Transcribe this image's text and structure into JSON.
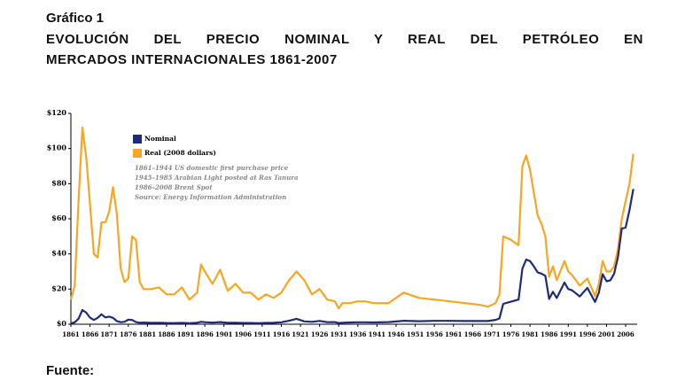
{
  "header": {
    "label": "Gráfico 1",
    "title_lines": [
      "EVOLUCIÓN DEL PRECIO NOMINAL Y REAL DEL PETRÓLEO EN",
      "MERCADOS INTERNACIONALES 1861-2007"
    ]
  },
  "chart_data": {
    "type": "line",
    "x": [
      1861,
      1862,
      1863,
      1864,
      1865,
      1866,
      1867,
      1868,
      1869,
      1870,
      1871,
      1872,
      1873,
      1874,
      1875,
      1876,
      1877,
      1878,
      1879,
      1880,
      1882,
      1884,
      1886,
      1888,
      1890,
      1892,
      1894,
      1895,
      1896,
      1898,
      1900,
      1902,
      1904,
      1906,
      1908,
      1910,
      1912,
      1914,
      1916,
      1918,
      1920,
      1922,
      1924,
      1926,
      1928,
      1930,
      1931,
      1932,
      1934,
      1936,
      1938,
      1940,
      1944,
      1948,
      1952,
      1956,
      1960,
      1964,
      1968,
      1970,
      1972,
      1973,
      1974,
      1976,
      1978,
      1979,
      1980,
      1981,
      1982,
      1983,
      1984,
      1985,
      1986,
      1987,
      1988,
      1990,
      1991,
      1992,
      1994,
      1996,
      1998,
      1999,
      2000,
      2001,
      2002,
      2003,
      2004,
      2005,
      2006,
      2007,
      2008
    ],
    "series": [
      {
        "name": "Real (2008 dollars)",
        "color": "#f5a623",
        "values": [
          14,
          22,
          70,
          112,
          95,
          68,
          40,
          38,
          58,
          58,
          64,
          78,
          63,
          32,
          24,
          26,
          50,
          48,
          24,
          20,
          20,
          21,
          17,
          17,
          21,
          14,
          18,
          34,
          30,
          23,
          31,
          19,
          23,
          18,
          18,
          14,
          17,
          15,
          18,
          25,
          30,
          25,
          17,
          20,
          14,
          13,
          9,
          12,
          12,
          13,
          13,
          12,
          12,
          18,
          15,
          14,
          13,
          12,
          11,
          10,
          12,
          17,
          50,
          48,
          45,
          90,
          96,
          88,
          75,
          62,
          57,
          50,
          27,
          33,
          25,
          36,
          30,
          28,
          22,
          26,
          16,
          23,
          36,
          30,
          30,
          33,
          43,
          60,
          70,
          80,
          97
        ]
      },
      {
        "name": "Nominal",
        "color": "#1f2a7a",
        "values": [
          0.5,
          1.05,
          3.15,
          8.06,
          6.59,
          3.74,
          2.41,
          3.63,
          5.64,
          3.86,
          4.34,
          3.64,
          1.83,
          1.17,
          1.35,
          2.56,
          2.42,
          1.19,
          0.86,
          0.95,
          0.78,
          0.84,
          0.71,
          0.65,
          0.77,
          0.56,
          0.84,
          1.36,
          1.18,
          0.91,
          1.19,
          0.8,
          0.86,
          0.73,
          0.72,
          0.61,
          0.74,
          0.81,
          1.1,
          1.98,
          3.07,
          1.61,
          1.34,
          1.88,
          1.17,
          1.19,
          0.65,
          0.87,
          1.0,
          1.09,
          1.13,
          1.02,
          1.21,
          1.99,
          1.71,
          1.93,
          1.9,
          1.8,
          1.8,
          1.8,
          2.48,
          3.29,
          11.58,
          12.8,
          14.02,
          31.61,
          36.83,
          35.93,
          32.97,
          29.55,
          28.78,
          27.56,
          14.43,
          18.44,
          14.92,
          23.73,
          20.0,
          19.32,
          15.82,
          20.67,
          12.72,
          17.97,
          28.5,
          24.44,
          25.02,
          28.83,
          38.27,
          54.52,
          55,
          65,
          77
        ]
      }
    ],
    "xlim": [
      1861,
      2009
    ],
    "xticks": [
      1861,
      1866,
      1871,
      1876,
      1881,
      1886,
      1891,
      1896,
      1901,
      1906,
      1911,
      1916,
      1921,
      1926,
      1931,
      1936,
      1941,
      1946,
      1951,
      1956,
      1961,
      1966,
      1971,
      1976,
      1981,
      1986,
      1991,
      1996,
      2001,
      2006
    ],
    "ylim": [
      0,
      120
    ],
    "yticks": [
      {
        "value": 0,
        "label": "$0"
      },
      {
        "value": 20,
        "label": "$20"
      },
      {
        "value": 40,
        "label": "$40"
      },
      {
        "value": 60,
        "label": "$60"
      },
      {
        "value": 80,
        "label": "$80"
      },
      {
        "value": 100,
        "label": "$100"
      },
      {
        "value": 120,
        "label": "$120"
      }
    ],
    "legend": "top-left",
    "annotations": [
      "1861–1944 US domestic first purchase price",
      "1945–1985 Arabian Light posted at Ras Tanura",
      "1986–2008 Brent Spot",
      "Source: Energy Information Administration"
    ]
  },
  "footer": {
    "label": "Fuente:"
  }
}
